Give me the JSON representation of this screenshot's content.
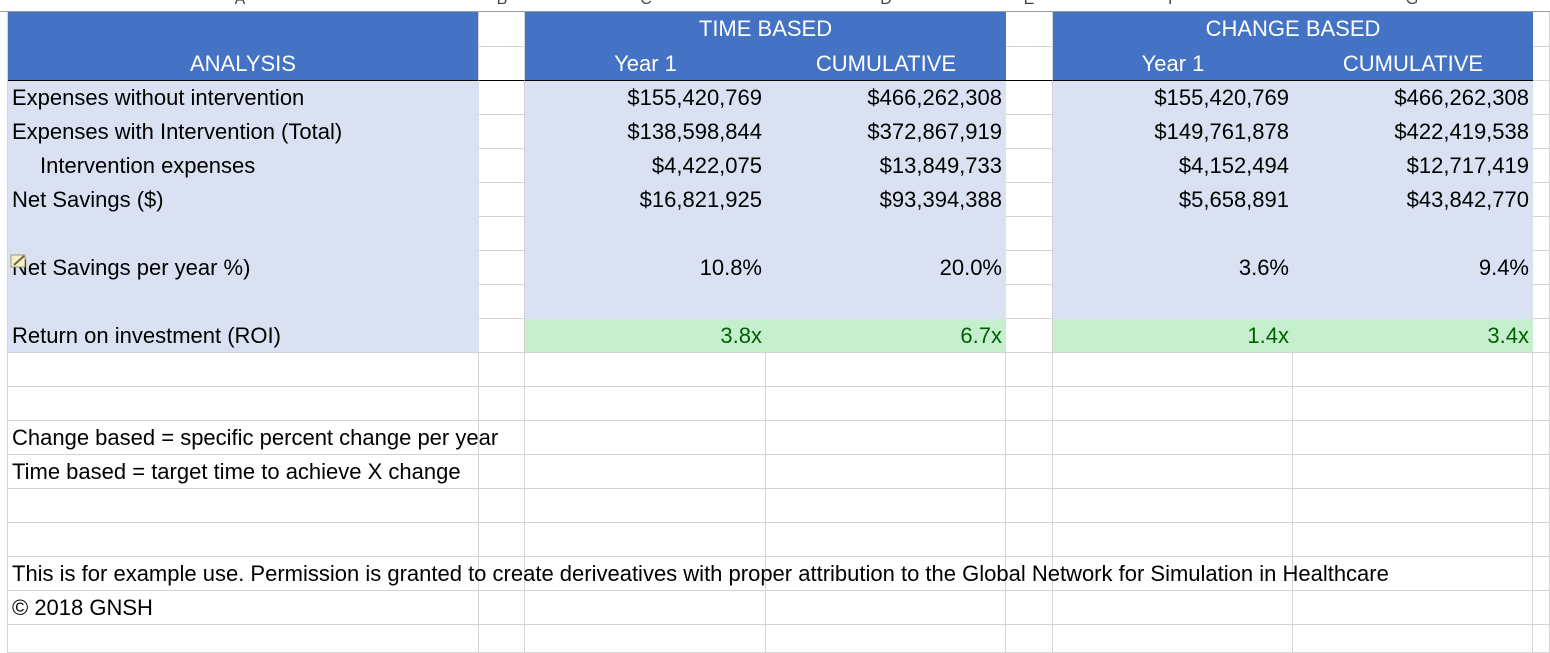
{
  "columns": {
    "a": "A",
    "b": "B",
    "c": "C",
    "d": "D",
    "e": "E",
    "f": "F",
    "g": "G"
  },
  "headers": {
    "analysis": "ANALYSIS",
    "time_based": "TIME BASED",
    "change_based": "CHANGE BASED",
    "year1": "Year 1",
    "cumulative": "CUMULATIVE"
  },
  "rows": [
    {
      "label": "Expenses without intervention",
      "tb_year1": "$155,420,769",
      "tb_cum": "$466,262,308",
      "cb_year1": "$155,420,769",
      "cb_cum": "$466,262,308"
    },
    {
      "label": "Expenses with Intervention (Total)",
      "tb_year1": "$138,598,844",
      "tb_cum": "$372,867,919",
      "cb_year1": "$149,761,878",
      "cb_cum": "$422,419,538"
    },
    {
      "label": "Intervention expenses",
      "tb_year1": "$4,422,075",
      "tb_cum": "$13,849,733",
      "cb_year1": "$4,152,494",
      "cb_cum": "$12,717,419"
    },
    {
      "label": "Net Savings ($)",
      "tb_year1": "$16,821,925",
      "tb_cum": "$93,394,388",
      "cb_year1": "$5,658,891",
      "cb_cum": "$43,842,770"
    },
    {
      "label": "Net Savings per year %)",
      "tb_year1": "10.8%",
      "tb_cum": "20.0%",
      "cb_year1": "3.6%",
      "cb_cum": "9.4%"
    },
    {
      "label": "Return on investment (ROI)",
      "tb_year1": "3.8x",
      "tb_cum": "6.7x",
      "cb_year1": "1.4x",
      "cb_cum": "3.4x"
    }
  ],
  "notes": {
    "change_based": "Change based = specific percent change per year",
    "time_based": "Time based = target time to achieve X change",
    "permission": "This is for example use. Permission is granted to create deriveatives with proper attribution to the Global Network for Simulation in Healthcare",
    "copyright": "© 2018 GNSH"
  },
  "colors": {
    "header_blue": "#4472c4",
    "light_blue": "#d9e1f2",
    "roi_green": "#c6efce",
    "roi_text": "#006100"
  },
  "icons": {
    "note": "pencil-note-icon"
  }
}
